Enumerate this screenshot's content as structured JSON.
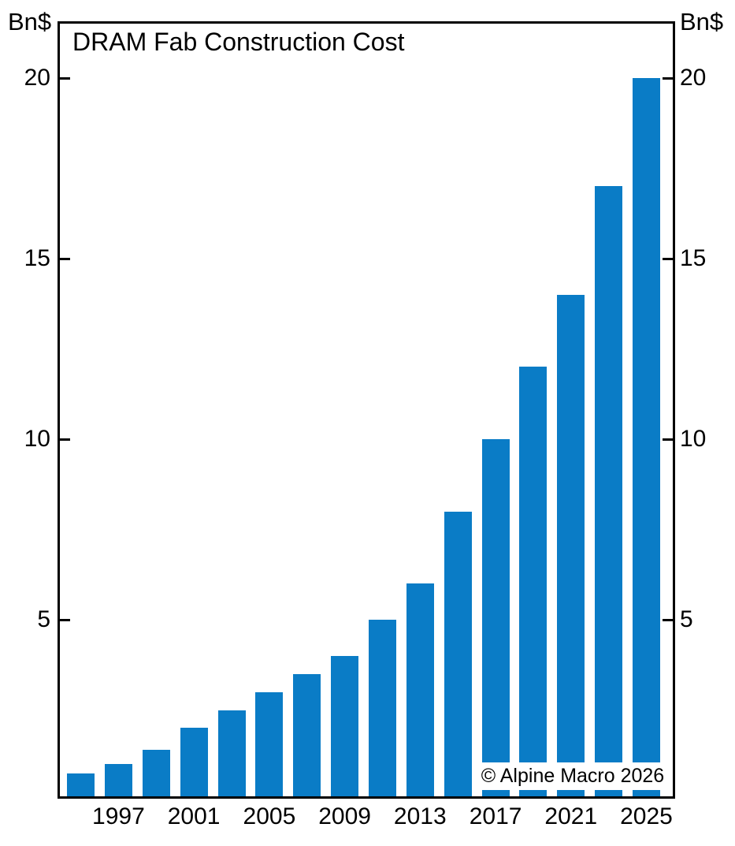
{
  "chart_data": {
    "type": "bar",
    "title": "DRAM Fab Construction Cost",
    "unit_label_left": "Bn$",
    "unit_label_right": "Bn$",
    "x": [
      1995,
      1997,
      1999,
      2001,
      2003,
      2005,
      2007,
      2009,
      2011,
      2013,
      2015,
      2017,
      2019,
      2021,
      2023,
      2025
    ],
    "values": [
      0.75,
      1,
      1.4,
      2,
      2.5,
      3,
      3.5,
      4,
      5,
      6,
      8,
      10,
      12,
      14,
      17,
      20
    ],
    "x_tick_labels": [
      "1997",
      "2001",
      "2005",
      "2009",
      "2013",
      "2017",
      "2021",
      "2025"
    ],
    "y_ticks": [
      5,
      10,
      15,
      20
    ],
    "ylim": [
      0,
      21.6
    ],
    "grid": false,
    "legend": "none",
    "bar_color": "#0A7CC6",
    "axis_color": "#000000",
    "annotation": "© Alpine Macro 2026"
  }
}
